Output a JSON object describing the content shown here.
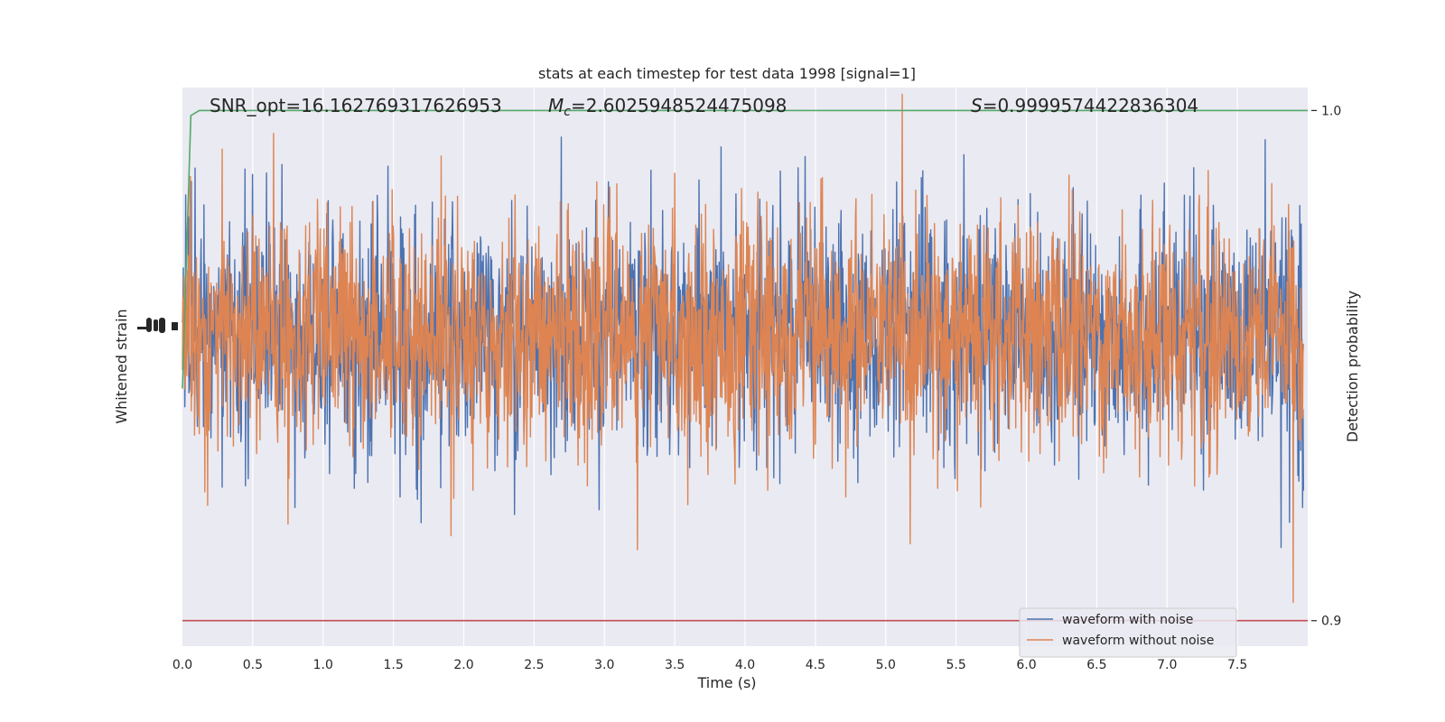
{
  "chart_data": {
    "type": "line",
    "title": "stats at each timestep for test data 1998 [signal=1]",
    "xlabel": "Time (s)",
    "ylabel_left": "Whitened strain",
    "ylabel_right": "Detection probability",
    "xlim": [
      0,
      8.0
    ],
    "x_ticks": [
      "0.0",
      "0.5",
      "1.0",
      "1.5",
      "2.0",
      "2.5",
      "3.0",
      "3.5",
      "4.0",
      "4.5",
      "5.0",
      "5.5",
      "6.0",
      "6.5",
      "7.0",
      "7.5"
    ],
    "x_tick_values": [
      0,
      0.5,
      1.0,
      1.5,
      2.0,
      2.5,
      3.0,
      3.5,
      4.0,
      4.5,
      5.0,
      5.5,
      6.0,
      6.5,
      7.0,
      7.5
    ],
    "right_axis": {
      "ylim": [
        0.895,
        1.0045
      ],
      "ticks": [
        "1.0",
        "0.9"
      ],
      "tick_values": [
        1.0,
        0.9
      ]
    },
    "grid": true,
    "legend_position": "lower-right",
    "annotations": {
      "snr": "SNR_opt=16.162769317626953",
      "mc": "=2.6025948524475098",
      "mc_symbol": "M",
      "mc_sub": "c",
      "s": "=0.9999574422836304",
      "s_symbol": "S"
    },
    "series": [
      {
        "name": "waveform with noise",
        "color": "#4c72b0",
        "axis": "left",
        "kind": "noise",
        "amplitude_typical": 1.0
      },
      {
        "name": "waveform without noise",
        "color": "#dd8452",
        "axis": "left",
        "kind": "noise",
        "amplitude_typical": 1.0
      },
      {
        "name": "",
        "color": "#55a868",
        "axis": "right",
        "kind": "line",
        "x": [
          0,
          0.06,
          0.12,
          8.0
        ],
        "y": [
          0.9455,
          0.999,
          1.0,
          1.0
        ]
      },
      {
        "name": "",
        "color": "#c44e52",
        "axis": "right",
        "kind": "line",
        "x": [
          0,
          8.0
        ],
        "y": [
          0.9,
          0.9
        ]
      }
    ]
  }
}
